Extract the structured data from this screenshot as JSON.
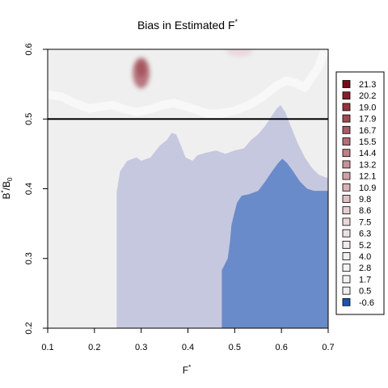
{
  "chart_data": {
    "type": "heatmap",
    "title": "Bias in Estimated F",
    "title_sup": "*",
    "xlabel": "F",
    "xlabel_sup": "*",
    "ylabel": "B",
    "ylabel_sup": "*",
    "ylabel_tail": "/B",
    "ylabel_sub": "0",
    "xlim": [
      0.1,
      0.7
    ],
    "ylim": [
      0.2,
      0.6
    ],
    "x_ticks": [
      "0.1",
      "0.2",
      "0.3",
      "0.4",
      "0.5",
      "0.6",
      "0.7"
    ],
    "y_ticks": [
      "0.2",
      "0.3",
      "0.4",
      "0.5",
      "0.6"
    ],
    "reference_line": {
      "y": 0.5,
      "color": "#000000"
    },
    "legend": {
      "placement": "right",
      "entries": [
        {
          "label": "21.3",
          "color": "#7a0a18"
        },
        {
          "label": "20.2",
          "color": "#87202b"
        },
        {
          "label": "19.0",
          "color": "#94363e"
        },
        {
          "label": "17.9",
          "color": "#a04a52"
        },
        {
          "label": "16.7",
          "color": "#ab5c64"
        },
        {
          "label": "15.5",
          "color": "#b56e75"
        },
        {
          "label": "14.4",
          "color": "#bf8087"
        },
        {
          "label": "13.2",
          "color": "#c89198"
        },
        {
          "label": "12.1",
          "color": "#d0a1a7"
        },
        {
          "label": "10.9",
          "color": "#d8b1b6"
        },
        {
          "label": "9.8",
          "color": "#dfbfc3"
        },
        {
          "label": "8.6",
          "color": "#e5cccf"
        },
        {
          "label": "7.5",
          "color": "#ead7da"
        },
        {
          "label": "6.3",
          "color": "#eee1e3"
        },
        {
          "label": "5.2",
          "color": "#f1e9ea"
        },
        {
          "label": "4.0",
          "color": "#f3eeef"
        },
        {
          "label": "2.8",
          "color": "#f4f2f2"
        },
        {
          "label": "1.7",
          "color": "#f3f3f3"
        },
        {
          "label": "0.5",
          "color": "#efefef"
        },
        {
          "label": "-0.6",
          "color": "#1e54ad"
        }
      ]
    },
    "regions": [
      {
        "name": "near-zero-bias",
        "color": "#efefef",
        "boundary": [
          [
            0.1,
            0.2
          ],
          [
            0.7,
            0.2
          ],
          [
            0.7,
            0.6
          ],
          [
            0.1,
            0.6
          ]
        ]
      },
      {
        "name": "lavender-negative",
        "color": "#c6c8e0",
        "boundary": [
          [
            0.2475,
            0.2
          ],
          [
            0.2475,
            0.395
          ],
          [
            0.255,
            0.425
          ],
          [
            0.27,
            0.44
          ],
          [
            0.29,
            0.445
          ],
          [
            0.3,
            0.44
          ],
          [
            0.32,
            0.445
          ],
          [
            0.34,
            0.462
          ],
          [
            0.355,
            0.47
          ],
          [
            0.365,
            0.48
          ],
          [
            0.375,
            0.478
          ],
          [
            0.385,
            0.462
          ],
          [
            0.395,
            0.445
          ],
          [
            0.41,
            0.44
          ],
          [
            0.42,
            0.448
          ],
          [
            0.44,
            0.452
          ],
          [
            0.46,
            0.455
          ],
          [
            0.48,
            0.45
          ],
          [
            0.5,
            0.455
          ],
          [
            0.52,
            0.458
          ],
          [
            0.535,
            0.47
          ],
          [
            0.55,
            0.478
          ],
          [
            0.565,
            0.49
          ],
          [
            0.58,
            0.505
          ],
          [
            0.59,
            0.515
          ],
          [
            0.598,
            0.52
          ],
          [
            0.608,
            0.51
          ],
          [
            0.62,
            0.49
          ],
          [
            0.635,
            0.465
          ],
          [
            0.65,
            0.445
          ],
          [
            0.665,
            0.43
          ],
          [
            0.68,
            0.42
          ],
          [
            0.7,
            0.415
          ],
          [
            0.7,
            0.2
          ]
        ]
      },
      {
        "name": "blue-negative",
        "color": "#6a8bca",
        "boundary": [
          [
            0.4725,
            0.2
          ],
          [
            0.4725,
            0.283
          ],
          [
            0.485,
            0.3
          ],
          [
            0.49,
            0.325
          ],
          [
            0.493,
            0.348
          ],
          [
            0.5,
            0.367
          ],
          [
            0.505,
            0.38
          ],
          [
            0.515,
            0.39
          ],
          [
            0.53,
            0.392
          ],
          [
            0.55,
            0.397
          ],
          [
            0.565,
            0.41
          ],
          [
            0.58,
            0.425
          ],
          [
            0.593,
            0.437
          ],
          [
            0.602,
            0.443
          ],
          [
            0.612,
            0.437
          ],
          [
            0.625,
            0.425
          ],
          [
            0.64,
            0.41
          ],
          [
            0.655,
            0.4
          ],
          [
            0.67,
            0.397
          ],
          [
            0.7,
            0.397
          ],
          [
            0.7,
            0.2
          ]
        ]
      },
      {
        "name": "white-band",
        "color": "#f8f8f8",
        "stroke_width_y": 0.012,
        "path": [
          [
            0.1,
            0.535
          ],
          [
            0.13,
            0.532
          ],
          [
            0.16,
            0.522
          ],
          [
            0.19,
            0.515
          ],
          [
            0.215,
            0.518
          ],
          [
            0.24,
            0.52
          ],
          [
            0.26,
            0.515
          ],
          [
            0.29,
            0.51
          ],
          [
            0.32,
            0.514
          ],
          [
            0.345,
            0.52
          ],
          [
            0.37,
            0.523
          ],
          [
            0.41,
            0.515
          ],
          [
            0.44,
            0.508
          ],
          [
            0.47,
            0.508
          ],
          [
            0.5,
            0.512
          ],
          [
            0.53,
            0.52
          ],
          [
            0.56,
            0.532
          ],
          [
            0.59,
            0.548
          ],
          [
            0.61,
            0.555
          ],
          [
            0.63,
            0.552
          ],
          [
            0.65,
            0.545
          ],
          [
            0.665,
            0.56
          ],
          [
            0.68,
            0.575
          ],
          [
            0.69,
            0.595
          ],
          [
            0.695,
            0.6
          ]
        ]
      }
    ],
    "hotspots": [
      {
        "x": 0.3,
        "y": 0.566,
        "rx": 0.018,
        "ry": 0.022,
        "color": "#b06a72",
        "opacity": 0.9
      },
      {
        "x": 0.3,
        "y": 0.572,
        "rx": 0.01,
        "ry": 0.012,
        "color": "#9a3f4a",
        "opacity": 0.6
      },
      {
        "x": 0.51,
        "y": 0.598,
        "rx": 0.028,
        "ry": 0.008,
        "color": "#ead2d5",
        "opacity": 0.8
      }
    ]
  }
}
